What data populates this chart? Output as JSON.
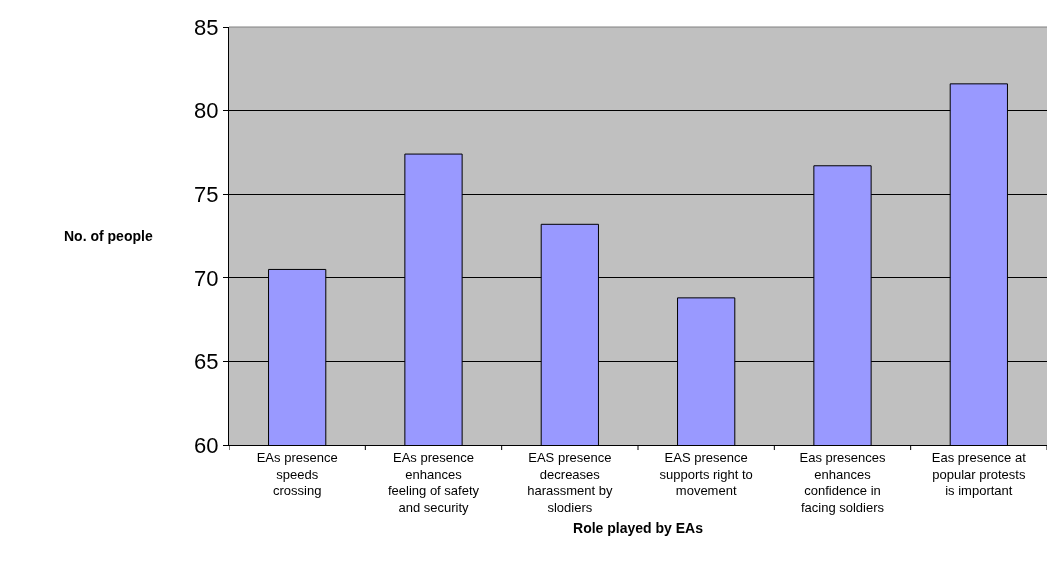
{
  "chart_data": {
    "type": "bar",
    "xlabel": "Role played by EAs",
    "ylabel": "No. of people",
    "categories": [
      "EAs presence\nspeeds\ncrossing",
      "EAs presence\nenhances\nfeeling of safety\nand security",
      "EAS presence\ndecreases\nharassment by\nslodiers",
      "EAS presence\nsupports right to\nmovement",
      "Eas presences\nenhances\nconfidence in\nfacing soldiers",
      "Eas presence at\npopular protests\nis important"
    ],
    "values": [
      70.5,
      77.4,
      73.2,
      68.8,
      76.7,
      81.6
    ],
    "color": "#9999ff",
    "ylim": [
      60,
      85
    ],
    "yticks": [
      60,
      65,
      70,
      75,
      80,
      85
    ],
    "grid": "y",
    "legend": false
  }
}
